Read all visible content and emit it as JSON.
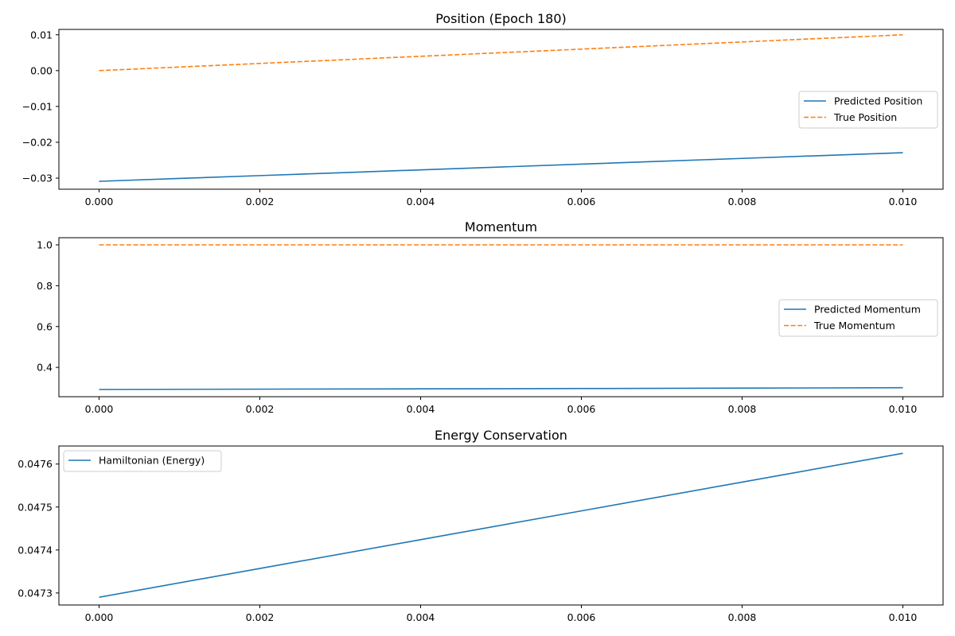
{
  "figure": {
    "background": "#ffffff"
  },
  "chart_data": [
    {
      "type": "line",
      "title": "Position (Epoch 180)",
      "xlabel": "",
      "ylabel": "",
      "xlim": [
        -0.0005,
        0.0105
      ],
      "ylim": [
        -0.0331,
        0.0115
      ],
      "xticks": [
        0.0,
        0.002,
        0.004,
        0.006,
        0.008,
        0.01
      ],
      "xtick_labels": [
        "0.000",
        "0.002",
        "0.004",
        "0.006",
        "0.008",
        "0.010"
      ],
      "yticks": [
        -0.03,
        -0.02,
        -0.01,
        0.0,
        0.01
      ],
      "ytick_labels": [
        "−0.03",
        "−0.02",
        "−0.01",
        "0.00",
        "0.01"
      ],
      "grid": false,
      "legend": {
        "placement": "center-right"
      },
      "series": [
        {
          "name": "Predicted Position",
          "color": "#1f77b4",
          "style": "solid",
          "x": [
            0.0,
            0.001,
            0.002,
            0.003,
            0.004,
            0.005,
            0.006,
            0.007,
            0.008,
            0.009,
            0.01
          ],
          "values": [
            -0.0309,
            -0.0301,
            -0.0293,
            -0.0285,
            -0.0277,
            -0.0269,
            -0.0261,
            -0.0253,
            -0.0245,
            -0.0237,
            -0.0229
          ]
        },
        {
          "name": "True Position",
          "color": "#ff7f0e",
          "style": "dashed",
          "x": [
            0.0,
            0.001,
            0.002,
            0.003,
            0.004,
            0.005,
            0.006,
            0.007,
            0.008,
            0.009,
            0.01
          ],
          "values": [
            0.0,
            0.001,
            0.002,
            0.003,
            0.004,
            0.005,
            0.006,
            0.007,
            0.008,
            0.009,
            0.01
          ]
        }
      ]
    },
    {
      "type": "line",
      "title": "Momentum",
      "xlabel": "",
      "ylabel": "",
      "xlim": [
        -0.0005,
        0.0105
      ],
      "ylim": [
        0.2565,
        1.035
      ],
      "xticks": [
        0.0,
        0.002,
        0.004,
        0.006,
        0.008,
        0.01
      ],
      "xtick_labels": [
        "0.000",
        "0.002",
        "0.004",
        "0.006",
        "0.008",
        "0.010"
      ],
      "yticks": [
        0.4,
        0.6,
        0.8,
        1.0
      ],
      "ytick_labels": [
        "0.4",
        "0.6",
        "0.8",
        "1.0"
      ],
      "grid": false,
      "legend": {
        "placement": "center-right"
      },
      "series": [
        {
          "name": "Predicted Momentum",
          "color": "#1f77b4",
          "style": "solid",
          "x": [
            0.0,
            0.002,
            0.004,
            0.006,
            0.008,
            0.01
          ],
          "values": [
            0.292,
            0.2935,
            0.295,
            0.2965,
            0.2985,
            0.3005
          ]
        },
        {
          "name": "True Momentum",
          "color": "#ff7f0e",
          "style": "dashed",
          "x": [
            0.0,
            0.002,
            0.004,
            0.006,
            0.008,
            0.01
          ],
          "values": [
            1.0,
            1.0,
            1.0,
            1.0,
            1.0,
            1.0
          ]
        }
      ]
    },
    {
      "type": "line",
      "title": "Energy Conservation",
      "xlabel": "",
      "ylabel": "",
      "xlim": [
        -0.0005,
        0.0105
      ],
      "ylim": [
        0.047272,
        0.047642
      ],
      "xticks": [
        0.0,
        0.002,
        0.004,
        0.006,
        0.008,
        0.01
      ],
      "xtick_labels": [
        "0.000",
        "0.002",
        "0.004",
        "0.006",
        "0.008",
        "0.010"
      ],
      "yticks": [
        0.0473,
        0.0474,
        0.0475,
        0.0476
      ],
      "ytick_labels": [
        "0.0473",
        "0.0474",
        "0.0475",
        "0.0476"
      ],
      "grid": false,
      "legend": {
        "placement": "upper-left"
      },
      "series": [
        {
          "name": "Hamiltonian (Energy)",
          "color": "#1f77b4",
          "style": "solid",
          "x": [
            0.0,
            0.002,
            0.004,
            0.006,
            0.008,
            0.01
          ],
          "values": [
            0.04729,
            0.047357,
            0.047424,
            0.047491,
            0.047558,
            0.047625
          ]
        }
      ]
    }
  ]
}
